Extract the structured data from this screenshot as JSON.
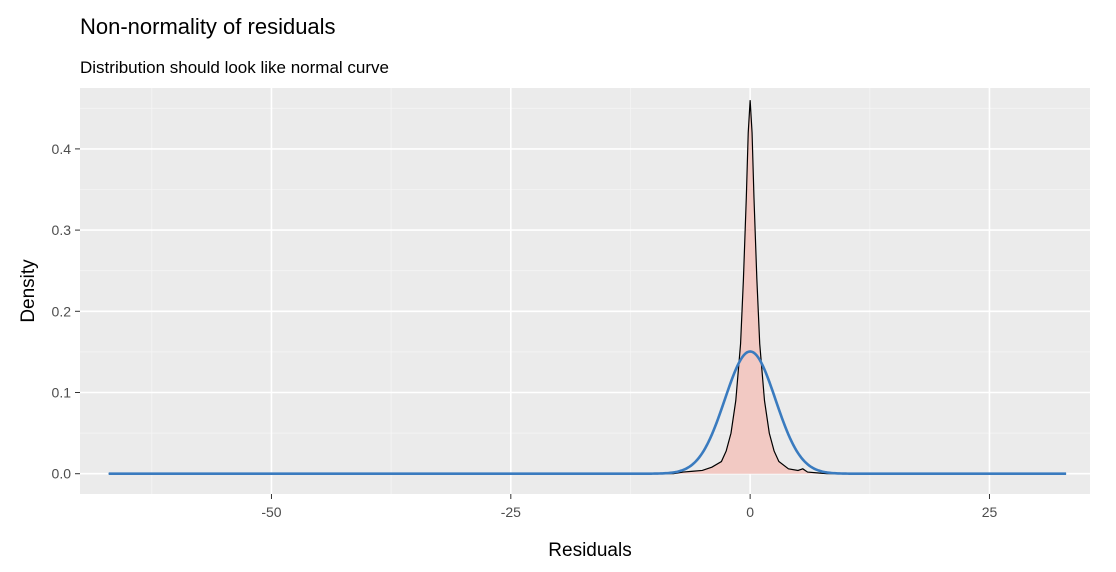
{
  "chart_data": {
    "type": "area",
    "title": "Non-normality of residuals",
    "subtitle": "Distribution should look like normal curve",
    "xlabel": "Residuals",
    "ylabel": "Density",
    "xlim": [
      -70,
      35.5
    ],
    "ylim": [
      -0.025,
      0.475
    ],
    "x_ticks": [
      -50,
      -25,
      0,
      25
    ],
    "x_tick_labels": [
      "-50",
      "-25",
      "0",
      "25"
    ],
    "y_ticks": [
      0.0,
      0.1,
      0.2,
      0.3,
      0.4
    ],
    "y_tick_labels": [
      "0.0",
      "0.1",
      "0.2",
      "0.3",
      "0.4"
    ],
    "grid": true,
    "panel_background": "#ebebeb",
    "series": [
      {
        "kind": "density-histogram",
        "fill": "#f2c9c3",
        "outline": "#000000",
        "x": [
          -67,
          -8,
          -7,
          -6,
          -5,
          -4,
          -3,
          -2.5,
          -2,
          -1.5,
          -1,
          -0.7,
          -0.4,
          -0.2,
          0,
          0.2,
          0.4,
          0.7,
          1,
          1.5,
          2,
          2.5,
          3,
          4,
          5,
          5.5,
          6,
          7,
          8,
          33
        ],
        "y": [
          0.0,
          0.0,
          0.002,
          0.003,
          0.004,
          0.008,
          0.015,
          0.028,
          0.05,
          0.09,
          0.16,
          0.24,
          0.34,
          0.42,
          0.46,
          0.42,
          0.34,
          0.24,
          0.16,
          0.09,
          0.05,
          0.028,
          0.015,
          0.006,
          0.004,
          0.006,
          0.002,
          0.001,
          0.0,
          0.0
        ]
      },
      {
        "kind": "normal-curve",
        "color": "#3a7bbf",
        "mean": 0,
        "sd": 2.65,
        "x_range": [
          -67,
          33
        ]
      }
    ]
  }
}
